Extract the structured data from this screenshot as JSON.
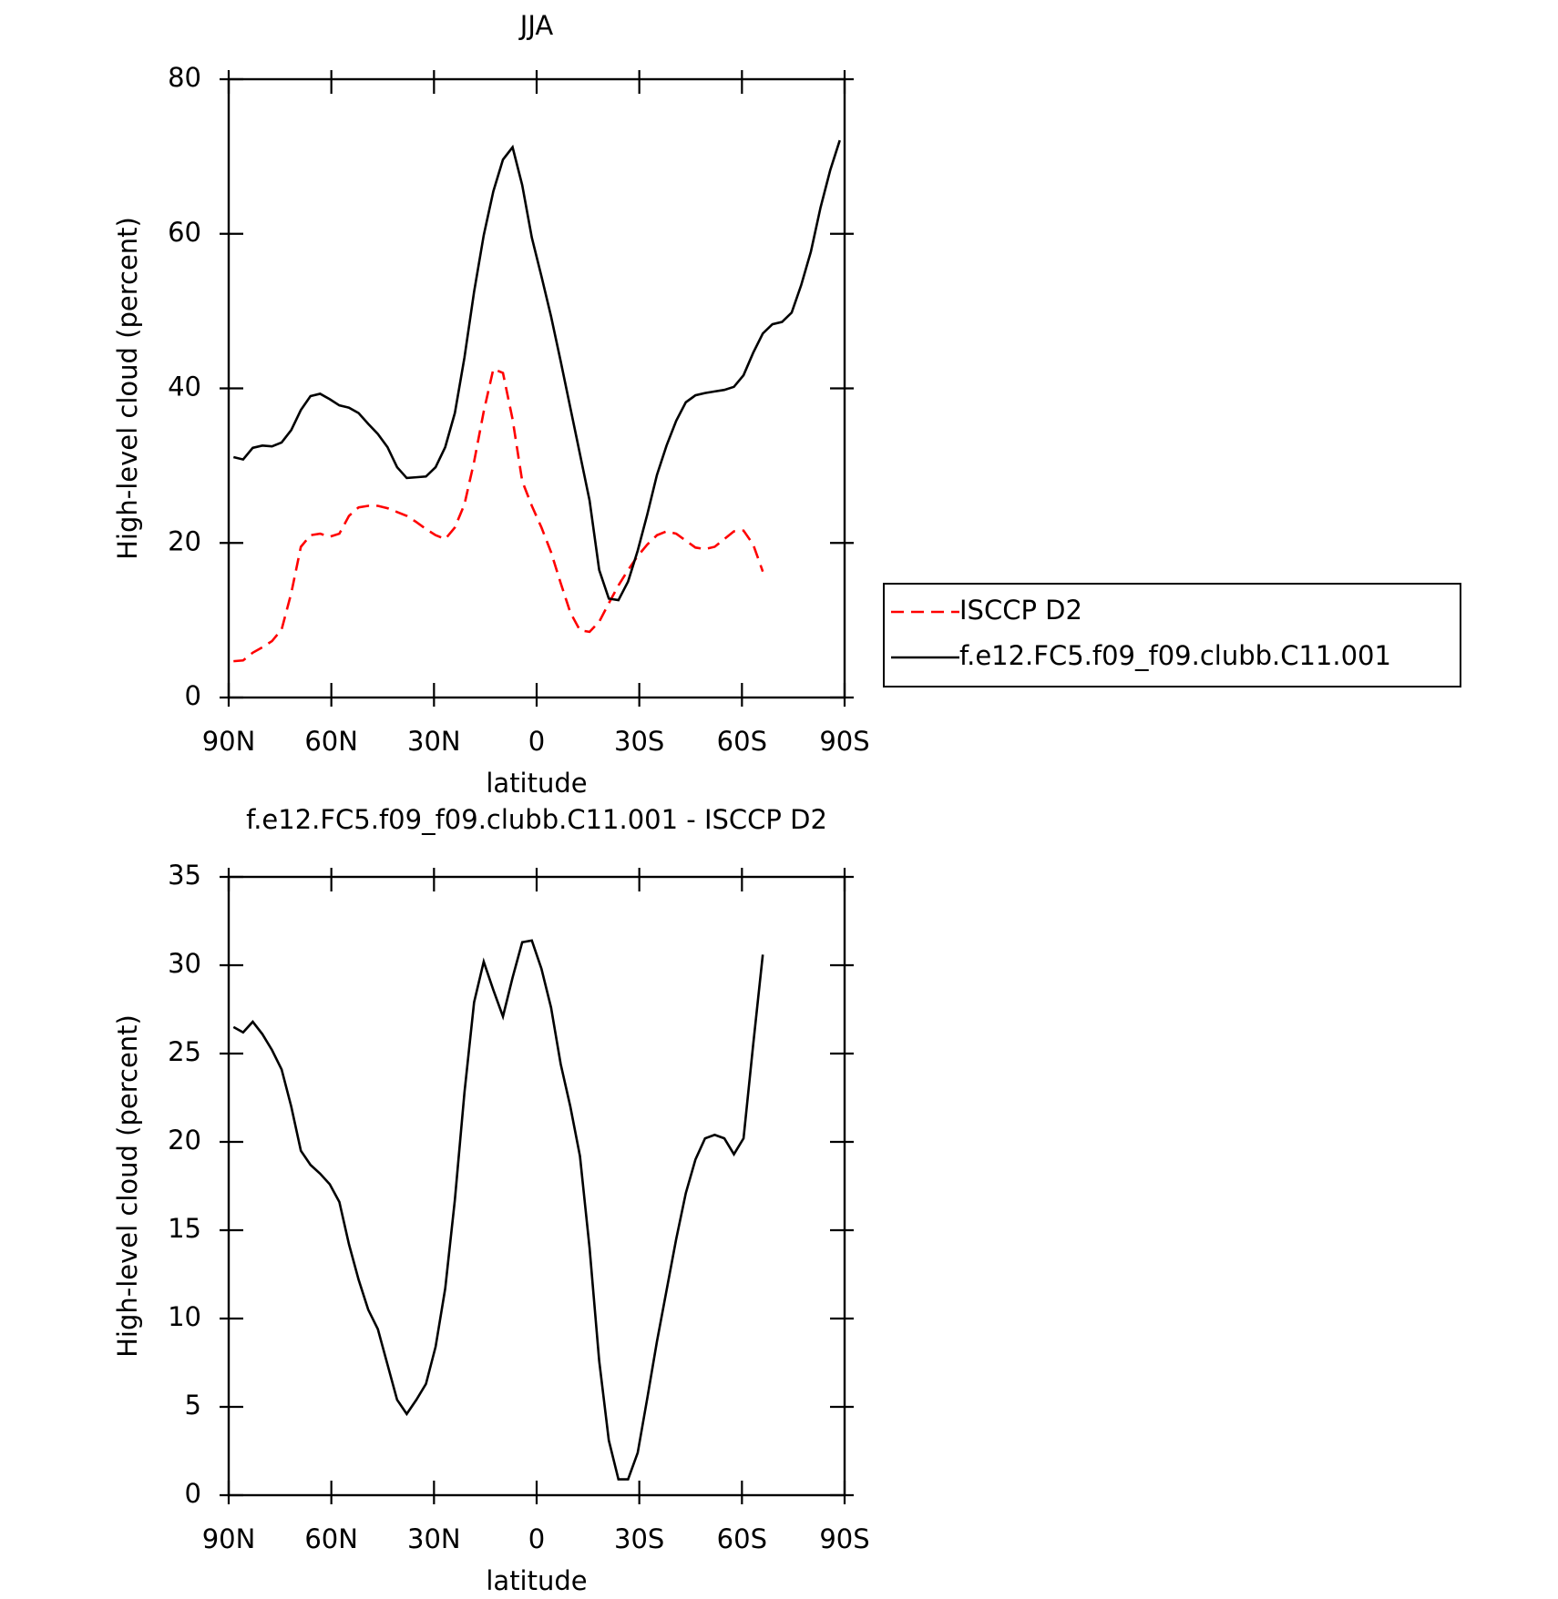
{
  "chart_data": [
    {
      "type": "line",
      "title": "JJA",
      "xlabel": "latitude",
      "ylabel": "High-level cloud (percent)",
      "x": [
        88.59375,
        85.78125,
        82.96875,
        80.15625,
        77.34375,
        74.53125,
        71.71875,
        68.90625,
        66.09375,
        63.28125,
        60.46875,
        57.65625,
        54.84375,
        52.03125,
        49.21875,
        46.40625,
        43.59375,
        40.78125,
        37.96875,
        35.15625,
        32.34375,
        29.53125,
        26.71875,
        23.90625,
        21.09375,
        18.28125,
        15.46875,
        12.65625,
        9.84375,
        7.03125,
        4.21875,
        1.40625,
        -1.40625,
        -4.21875,
        -7.03125,
        -9.84375,
        -12.65625,
        -15.46875,
        -18.28125,
        -21.09375,
        -23.90625,
        -26.71875,
        -29.53125,
        -32.34375,
        -35.15625,
        -37.96875,
        -40.78125,
        -43.59375,
        -46.40625,
        -49.21875,
        -52.03125,
        -54.84375,
        -57.65625,
        -60.46875,
        -63.28125,
        -66.09375,
        -68.90625,
        -71.71875,
        -74.53125,
        -77.34375,
        -80.15625,
        -82.96875,
        -85.78125,
        -88.59375
      ],
      "series": [
        {
          "name": "ISCCP D2",
          "color": "#ff0000",
          "dashed": true,
          "values": [
            4.7,
            4.8,
            5.8,
            6.5,
            7.3,
            8.8,
            13.5,
            19.5,
            21,
            21.2,
            20.8,
            21.2,
            23.5,
            24.6,
            24.8,
            24.8,
            24.5,
            24,
            23.5,
            22.7,
            21.8,
            21,
            20.5,
            22,
            25,
            30.5,
            37,
            42.5,
            42,
            36,
            28,
            24.8,
            22,
            18.8,
            14.8,
            11,
            8.7,
            8.5,
            9.8,
            12.2,
            14.5,
            16.5,
            18.3,
            19.8,
            21,
            21.5,
            21.2,
            20.3,
            19.4,
            19.2,
            19.5,
            20.5,
            21.5,
            21.6,
            19.8,
            16.3,
            null,
            null,
            null,
            null,
            null,
            null,
            null,
            null
          ]
        },
        {
          "name": "f.e12.FC5.f09_f09.clubb.C11.001",
          "color": "#000000",
          "dashed": false,
          "values": [
            31.1,
            30.8,
            32.3,
            32.6,
            32.5,
            33.0,
            34.6,
            37.2,
            39.0,
            39.3,
            38.6,
            37.8,
            37.5,
            36.8,
            35.4,
            34.1,
            32.4,
            29.8,
            28.4,
            28.5,
            28.6,
            29.8,
            32.4,
            36.8,
            44,
            52.5,
            59.8,
            65.5,
            69.6,
            71.2,
            66.3,
            59.5,
            54.5,
            49.3,
            43.5,
            37.5,
            31.5,
            25.5,
            16.5,
            12.8,
            12.6,
            15,
            19,
            23.7,
            28.8,
            32.6,
            35.8,
            38.2,
            39.1,
            39.4,
            39.6,
            39.8,
            40.2,
            41.7,
            44.6,
            47.1,
            48.3,
            48.6,
            49.8,
            53.4,
            57.7,
            63.4,
            68.2,
            72.1
          ]
        }
      ],
      "xlim": [
        90,
        -90
      ],
      "xticks": [
        {
          "value": 90,
          "label": "90N"
        },
        {
          "value": 60,
          "label": "60N"
        },
        {
          "value": 30,
          "label": "30N"
        },
        0,
        {
          "value": -30,
          "label": "30S"
        },
        {
          "value": -60,
          "label": "60S"
        },
        {
          "value": -90,
          "label": "90S"
        }
      ],
      "ylim": [
        0,
        80
      ],
      "yticks": [
        0,
        20,
        40,
        60,
        80
      ],
      "legend": "right"
    },
    {
      "type": "line",
      "title": "f.e12.FC5.f09_f09.clubb.C11.001 - ISCCP D2",
      "xlabel": "latitude",
      "ylabel": "High-level cloud (percent)",
      "x": [
        88.59375,
        85.78125,
        82.96875,
        80.15625,
        77.34375,
        74.53125,
        71.71875,
        68.90625,
        66.09375,
        63.28125,
        60.46875,
        57.65625,
        54.84375,
        52.03125,
        49.21875,
        46.40625,
        43.59375,
        40.78125,
        37.96875,
        35.15625,
        32.34375,
        29.53125,
        26.71875,
        23.90625,
        21.09375,
        18.28125,
        15.46875,
        12.65625,
        9.84375,
        7.03125,
        4.21875,
        1.40625,
        -1.40625,
        -4.21875,
        -7.03125,
        -9.84375,
        -12.65625,
        -15.46875,
        -18.28125,
        -21.09375,
        -23.90625,
        -26.71875,
        -29.53125,
        -32.34375,
        -35.15625,
        -37.96875,
        -40.78125,
        -43.59375,
        -46.40625,
        -49.21875,
        -52.03125,
        -54.84375,
        -57.65625,
        -60.46875,
        -63.28125,
        -66.09375,
        -68.90625,
        -71.71875,
        -74.53125,
        -77.34375,
        -80.15625,
        -82.96875,
        -85.78125,
        -88.59375
      ],
      "series": [
        {
          "color": "#000000",
          "dashed": false,
          "values": [
            26.5,
            26.2,
            26.8,
            26.1,
            25.2,
            24.1,
            22,
            19.5,
            18.7,
            18.2,
            17.6,
            16.6,
            14.2,
            12.2,
            10.5,
            9.4,
            7.4,
            5.4,
            4.6,
            5.4,
            6.3,
            8.4,
            11.7,
            16.7,
            22.8,
            27.9,
            30.2,
            28.6,
            27.1,
            29.3,
            31.3,
            31.4,
            29.8,
            27.6,
            24.4,
            22.0,
            19.2,
            14.0,
            7.6,
            3.1,
            0.9,
            0.9,
            2.4,
            5.5,
            8.7,
            11.6,
            14.5,
            17.1,
            19,
            20.2,
            20.4,
            20.2,
            19.3,
            20.2,
            25.5,
            30.6,
            null,
            null,
            null,
            null,
            null,
            null,
            null,
            null
          ]
        }
      ],
      "xlim": [
        90,
        -90
      ],
      "xticks": [
        {
          "value": 90,
          "label": "90N"
        },
        {
          "value": 60,
          "label": "60N"
        },
        {
          "value": 30,
          "label": "30N"
        },
        0,
        {
          "value": -30,
          "label": "30S"
        },
        {
          "value": -60,
          "label": "60S"
        },
        {
          "value": -90,
          "label": "90S"
        }
      ],
      "ylim": [
        0,
        35
      ],
      "yticks": [
        0,
        5,
        10,
        15,
        20,
        25,
        30,
        35
      ]
    }
  ]
}
